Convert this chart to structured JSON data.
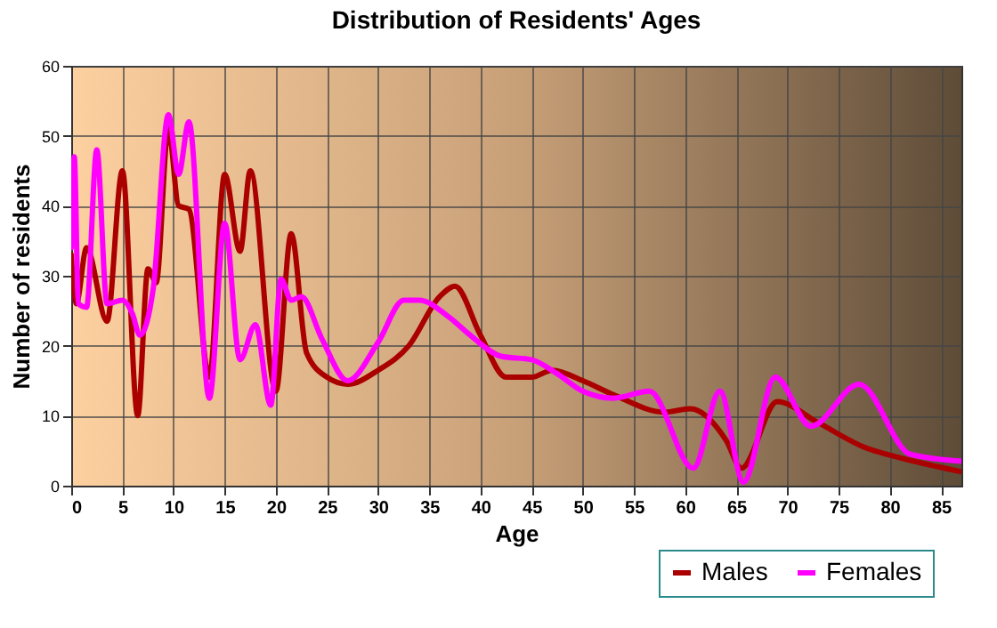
{
  "chart_data": {
    "type": "line",
    "title": "Distribution of Residents' Ages",
    "xlabel": "Age",
    "ylabel": "Number of residents",
    "xlim": [
      0,
      87
    ],
    "xticks": [
      0,
      5,
      10,
      15,
      20,
      25,
      30,
      35,
      40,
      45,
      50,
      55,
      60,
      65,
      70,
      75,
      80,
      85
    ],
    "ylim": [
      0,
      60
    ],
    "yticks": [
      0,
      10,
      20,
      30,
      40,
      50,
      60
    ],
    "grid": true,
    "legend": "bottom right",
    "series": [
      {
        "name": "Males",
        "color": "#aa0000",
        "x": [
          0,
          0.5,
          1.5,
          3.5,
          5,
          6.5,
          7.5,
          8.3,
          9.5,
          10.5,
          11.5,
          13.5,
          15,
          16.5,
          17.5,
          20,
          21.5,
          23,
          25,
          27,
          30,
          33,
          36,
          37.5,
          40,
          42.5,
          45,
          47,
          50,
          53,
          58,
          60.5,
          64,
          65.5,
          69,
          73,
          77.5,
          81,
          87
        ],
        "values": [
          33,
          26,
          34,
          23.5,
          45,
          10,
          31,
          29,
          51,
          40,
          39.5,
          15.5,
          44.5,
          33.5,
          45,
          13.5,
          36,
          19,
          15.5,
          14.5,
          16.5,
          20,
          27,
          28.5,
          21.5,
          15.5,
          15.5,
          16.5,
          15,
          13,
          10.5,
          11,
          6.5,
          2.5,
          12,
          9,
          5.5,
          4,
          2
        ]
      },
      {
        "name": "Females",
        "color": "#ff00ff",
        "x": [
          0,
          0.3,
          0.7,
          1.5,
          2.5,
          3.5,
          5,
          6,
          6.7,
          8,
          9.5,
          10.5,
          11.5,
          13.5,
          15,
          16.5,
          18,
          19.5,
          20.5,
          21.5,
          22.5,
          24.5,
          27,
          30,
          32.5,
          34,
          37,
          39,
          42,
          45,
          47.5,
          50,
          53,
          56.5,
          60.8,
          63.4,
          65.7,
          68.8,
          72.3,
          77,
          82,
          87
        ],
        "values": [
          34,
          47,
          26,
          25.5,
          48,
          26,
          26.5,
          24.5,
          21.5,
          28,
          53,
          44.5,
          52,
          12.5,
          37.5,
          18,
          23,
          11.5,
          29.5,
          26.5,
          27,
          21,
          15,
          20.5,
          26.5,
          26.5,
          24,
          21.5,
          18.5,
          18,
          16,
          13.5,
          12.5,
          13.5,
          2.5,
          13.5,
          0.5,
          15.5,
          8.5,
          14.5,
          4.5,
          3.5
        ]
      }
    ]
  }
}
